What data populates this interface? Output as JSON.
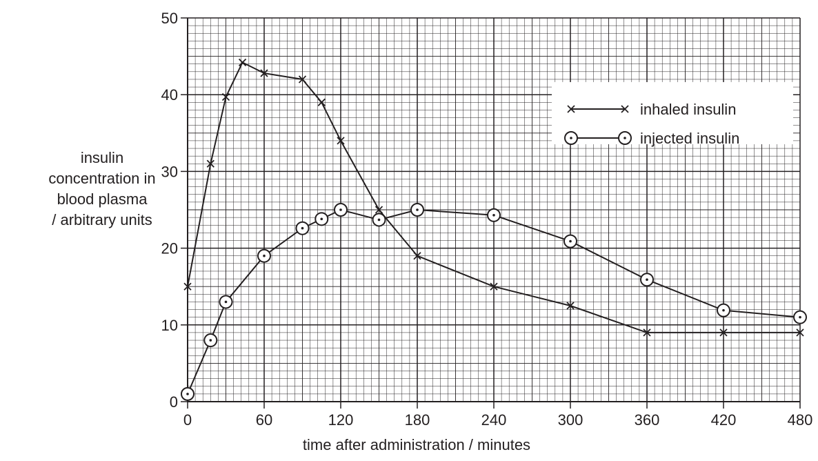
{
  "chart_data": {
    "type": "line",
    "xlabel": "time after administration / minutes",
    "ylabel_lines": [
      "insulin",
      "concentration in",
      "blood plasma",
      "/ arbitrary units"
    ],
    "xlim": [
      0,
      480
    ],
    "ylim": [
      0,
      50
    ],
    "x_ticks": [
      0,
      60,
      120,
      180,
      240,
      300,
      360,
      420,
      480
    ],
    "y_ticks": [
      0,
      10,
      20,
      30,
      40,
      50
    ],
    "grid": true,
    "legend_position": "top-right",
    "series": [
      {
        "name": "inhaled insulin",
        "marker": "cross",
        "x": [
          0,
          18,
          30,
          43,
          60,
          90,
          105,
          120,
          150,
          180,
          240,
          300,
          360,
          420,
          480
        ],
        "y": [
          15,
          31,
          39.7,
          44.2,
          42.8,
          42,
          39,
          34,
          25,
          19,
          15,
          12.5,
          9,
          9,
          9
        ]
      },
      {
        "name": "injected insulin",
        "marker": "circle-dot",
        "x": [
          0,
          18,
          30,
          60,
          90,
          105,
          120,
          150,
          180,
          240,
          300,
          360,
          420,
          480
        ],
        "y": [
          1,
          8,
          13,
          19,
          22.6,
          23.8,
          25,
          23.7,
          25,
          24.3,
          20.9,
          15.9,
          11.9,
          11
        ]
      }
    ]
  }
}
